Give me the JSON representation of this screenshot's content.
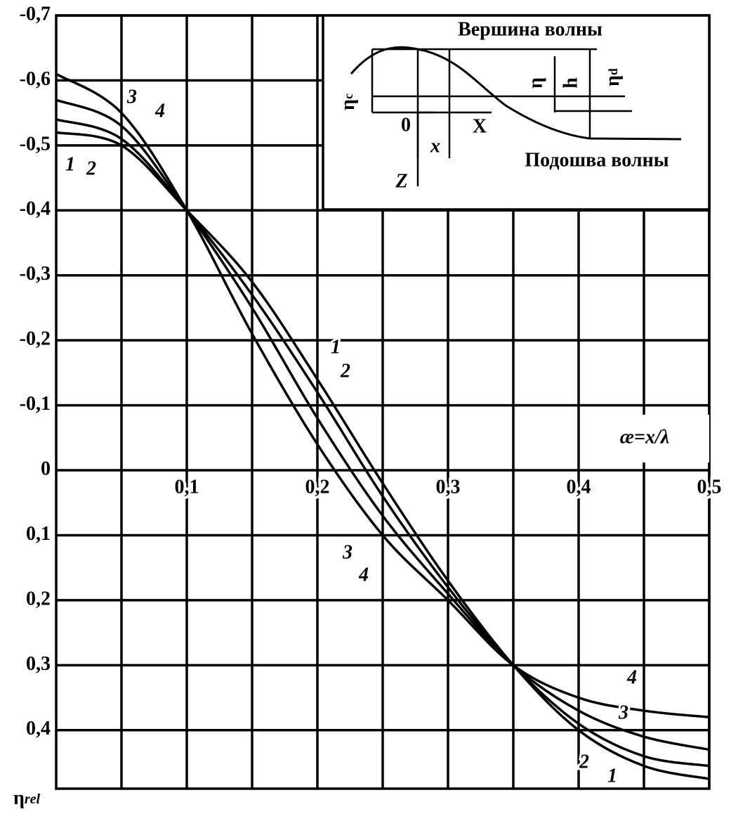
{
  "chart_data": {
    "type": "line",
    "x_label": "æ=x/λ",
    "y_label": {
      "symbol": "η",
      "subscript": "rel"
    },
    "x": [
      0,
      0.05,
      0.1,
      0.15,
      0.2,
      0.25,
      0.3,
      0.35,
      0.4,
      0.45,
      0.5
    ],
    "series": [
      {
        "name": "1",
        "color": "#000000",
        "values": [
          -0.52,
          -0.5,
          -0.4,
          -0.29,
          -0.14,
          0.02,
          0.17,
          0.3,
          0.4,
          0.455,
          0.475
        ]
      },
      {
        "name": "2",
        "color": "#000000",
        "values": [
          -0.54,
          -0.51,
          -0.4,
          -0.27,
          -0.12,
          0.04,
          0.18,
          0.3,
          0.39,
          0.44,
          0.455
        ]
      },
      {
        "name": "3",
        "color": "#000000",
        "values": [
          -0.57,
          -0.53,
          -0.4,
          -0.25,
          -0.08,
          0.07,
          0.19,
          0.3,
          0.37,
          0.41,
          0.43
        ]
      },
      {
        "name": "4",
        "color": "#000000",
        "values": [
          -0.61,
          -0.55,
          -0.4,
          -0.21,
          -0.04,
          0.1,
          0.2,
          0.3,
          0.35,
          0.37,
          0.38
        ]
      }
    ],
    "xlim": [
      0,
      0.5
    ],
    "xticks": [
      {
        "value": 0.1,
        "label": "0,1"
      },
      {
        "value": 0.2,
        "label": "0,2"
      },
      {
        "value": 0.3,
        "label": "0,3"
      },
      {
        "value": 0.4,
        "label": "0,4"
      },
      {
        "value": 0.5,
        "label": "0,5"
      }
    ],
    "x_minor_ticks": [
      0.05,
      0.15,
      0.25,
      0.35,
      0.45
    ],
    "ylim": [
      -0.7,
      0.49
    ],
    "y_inverted": true,
    "yticks": [
      {
        "value": -0.7,
        "label": "-0,7"
      },
      {
        "value": -0.6,
        "label": "-0,6"
      },
      {
        "value": -0.5,
        "label": "-0,5"
      },
      {
        "value": -0.4,
        "label": "-0,4"
      },
      {
        "value": -0.3,
        "label": "-0,3"
      },
      {
        "value": -0.2,
        "label": "-0,2"
      },
      {
        "value": -0.1,
        "label": "-0,1"
      },
      0,
      {
        "value": 0.1,
        "label": "0,1"
      },
      {
        "value": 0.2,
        "label": "0,2"
      },
      {
        "value": 0.3,
        "label": "0,3"
      },
      {
        "value": 0.4,
        "label": "0,4"
      }
    ],
    "grid": true,
    "inset": {
      "crest": "Вершина волны",
      "trough": "Подошва волны",
      "eta": "η",
      "sub_c": "c",
      "sub_d": "d",
      "h": "h",
      "origin": "0",
      "x_axis": "X",
      "x": "x",
      "z_axis": "Z"
    }
  }
}
